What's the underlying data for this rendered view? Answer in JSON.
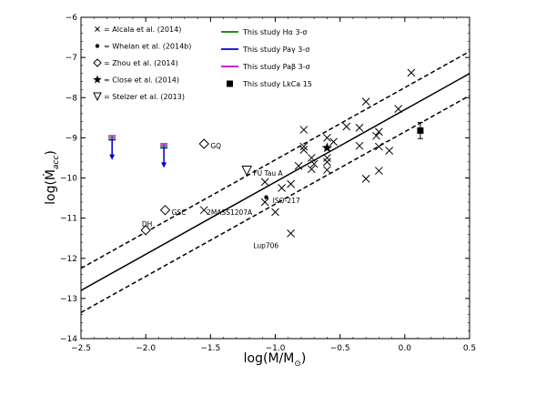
{
  "chart_data": {
    "type": "scatter",
    "xlabel": "log(M/M",
    "xlabel_sub": "⊙",
    "xlabel_close": ")",
    "ylabel": "log(Ṁ",
    "ylabel_sub": "acc",
    "ylabel_close": ")",
    "xlim": [
      -2.5,
      0.5
    ],
    "ylim": [
      -14,
      -6
    ],
    "xticks": [
      {
        "v": -2.5,
        "label": "−2.5"
      },
      {
        "v": -2.0,
        "label": "−2.0"
      },
      {
        "v": -1.5,
        "label": "−1.5"
      },
      {
        "v": -1.0,
        "label": "−1.0"
      },
      {
        "v": -0.5,
        "label": "−0.5"
      },
      {
        "v": 0.0,
        "label": "0.0"
      },
      {
        "v": 0.5,
        "label": "0.5"
      }
    ],
    "yticks": [
      {
        "v": -14,
        "label": "−14"
      },
      {
        "v": -13,
        "label": "−13"
      },
      {
        "v": -12,
        "label": "−12"
      },
      {
        "v": -11,
        "label": "−11"
      },
      {
        "v": -10,
        "label": "−10"
      },
      {
        "v": -9,
        "label": "−9"
      },
      {
        "v": -8,
        "label": "−8"
      },
      {
        "v": -7,
        "label": "−7"
      },
      {
        "v": -6,
        "label": "−6"
      }
    ],
    "fit_line": {
      "slope": 1.8,
      "intercept": -8.3,
      "offset": 0.55
    },
    "legend_left": [
      {
        "marker": "x",
        "label": "= Alcala et al. (2014)"
      },
      {
        "marker": "dot",
        "label": "= Whelan et al. (2014b)"
      },
      {
        "marker": "diamond",
        "label": "= Zhou et al. (2014)"
      },
      {
        "marker": "star",
        "label": "= Close et al. (2014)"
      },
      {
        "marker": "triangle",
        "label": "= Stelzer et al. (2013)"
      }
    ],
    "legend_right": [
      {
        "marker": "line",
        "color": "#008000",
        "label": "This study Hα 3-σ"
      },
      {
        "marker": "line",
        "color": "#0000cc",
        "label": "This study Paγ 3-σ"
      },
      {
        "marker": "line",
        "color": "#cc00cc",
        "label": "This study Paβ 3-σ"
      },
      {
        "marker": "square",
        "color": "#000000",
        "label": "This study LkCa 15"
      }
    ],
    "series": [
      {
        "name": "Alcala et al. (2014)",
        "marker": "x",
        "points": [
          {
            "x": 0.05,
            "y": -7.38
          },
          {
            "x": -0.05,
            "y": -8.28
          },
          {
            "x": -0.3,
            "y": -8.1
          },
          {
            "x": -0.35,
            "y": -8.75
          },
          {
            "x": -0.45,
            "y": -8.72
          },
          {
            "x": -0.2,
            "y": -8.85
          },
          {
            "x": -0.22,
            "y": -8.95
          },
          {
            "x": -0.35,
            "y": -9.2
          },
          {
            "x": -0.55,
            "y": -9.1
          },
          {
            "x": -0.12,
            "y": -9.32
          },
          {
            "x": -0.2,
            "y": -9.22
          },
          {
            "x": -0.6,
            "y": -9.0
          },
          {
            "x": -0.78,
            "y": -8.8
          },
          {
            "x": -0.78,
            "y": -9.22
          },
          {
            "x": -0.78,
            "y": -9.3
          },
          {
            "x": -0.72,
            "y": -9.5
          },
          {
            "x": -0.6,
            "y": -9.5
          },
          {
            "x": -0.6,
            "y": -9.6
          },
          {
            "x": -0.7,
            "y": -9.65
          },
          {
            "x": -0.72,
            "y": -9.78
          },
          {
            "x": -0.82,
            "y": -9.7
          },
          {
            "x": -0.6,
            "y": -9.8
          },
          {
            "x": -0.2,
            "y": -9.82
          },
          {
            "x": -0.3,
            "y": -10.02
          },
          {
            "x": -0.88,
            "y": -10.15
          },
          {
            "x": -1.08,
            "y": -10.1
          },
          {
            "x": -0.95,
            "y": -10.25
          },
          {
            "x": -1.08,
            "y": -10.6
          },
          {
            "x": -1.0,
            "y": -10.85
          },
          {
            "x": -0.88,
            "y": -11.38
          },
          {
            "x": -1.55,
            "y": -10.8
          }
        ]
      },
      {
        "name": "Whelan et al. (2014b)",
        "marker": "dot",
        "points": [
          {
            "x": -1.07,
            "y": -10.48
          }
        ]
      },
      {
        "name": "Zhou et al. (2014)",
        "marker": "diamond",
        "points": [
          {
            "x": -1.55,
            "y": -9.15
          },
          {
            "x": -1.85,
            "y": -10.8
          },
          {
            "x": -2.0,
            "y": -11.3
          }
        ]
      },
      {
        "name": "Close et al. (2014)",
        "marker": "star",
        "points": [
          {
            "x": -0.6,
            "y": -9.25
          }
        ]
      },
      {
        "name": "Stelzer et al. (2013)",
        "marker": "triangle",
        "points": [
          {
            "x": -1.22,
            "y": -9.82
          }
        ]
      },
      {
        "name": "This study LkCa 15",
        "marker": "square",
        "points": [
          {
            "x": 0.12,
            "y": -8.82,
            "err": 0.2
          }
        ]
      }
    ],
    "upper_limits": [
      {
        "x": -2.26,
        "y_magenta": -8.95,
        "y_green": -9.0,
        "y_blue": -9.05
      },
      {
        "x": -1.86,
        "y_magenta": -9.15,
        "y_green": -9.2,
        "y_blue": -9.25
      }
    ],
    "annotations": [
      {
        "text": "GQ",
        "x": -1.5,
        "y": -9.2
      },
      {
        "text": "FU Tau A",
        "x": -1.17,
        "y": -9.88
      },
      {
        "text": "ISO-217",
        "x": -1.02,
        "y": -10.55
      },
      {
        "text": "GSC",
        "x": -1.8,
        "y": -10.85
      },
      {
        "text": "2MASS1207A",
        "x": -1.53,
        "y": -10.85
      },
      {
        "text": "DH",
        "x": -2.03,
        "y": -11.15
      },
      {
        "text": "Lup706",
        "x": -1.17,
        "y": -11.68
      }
    ]
  }
}
